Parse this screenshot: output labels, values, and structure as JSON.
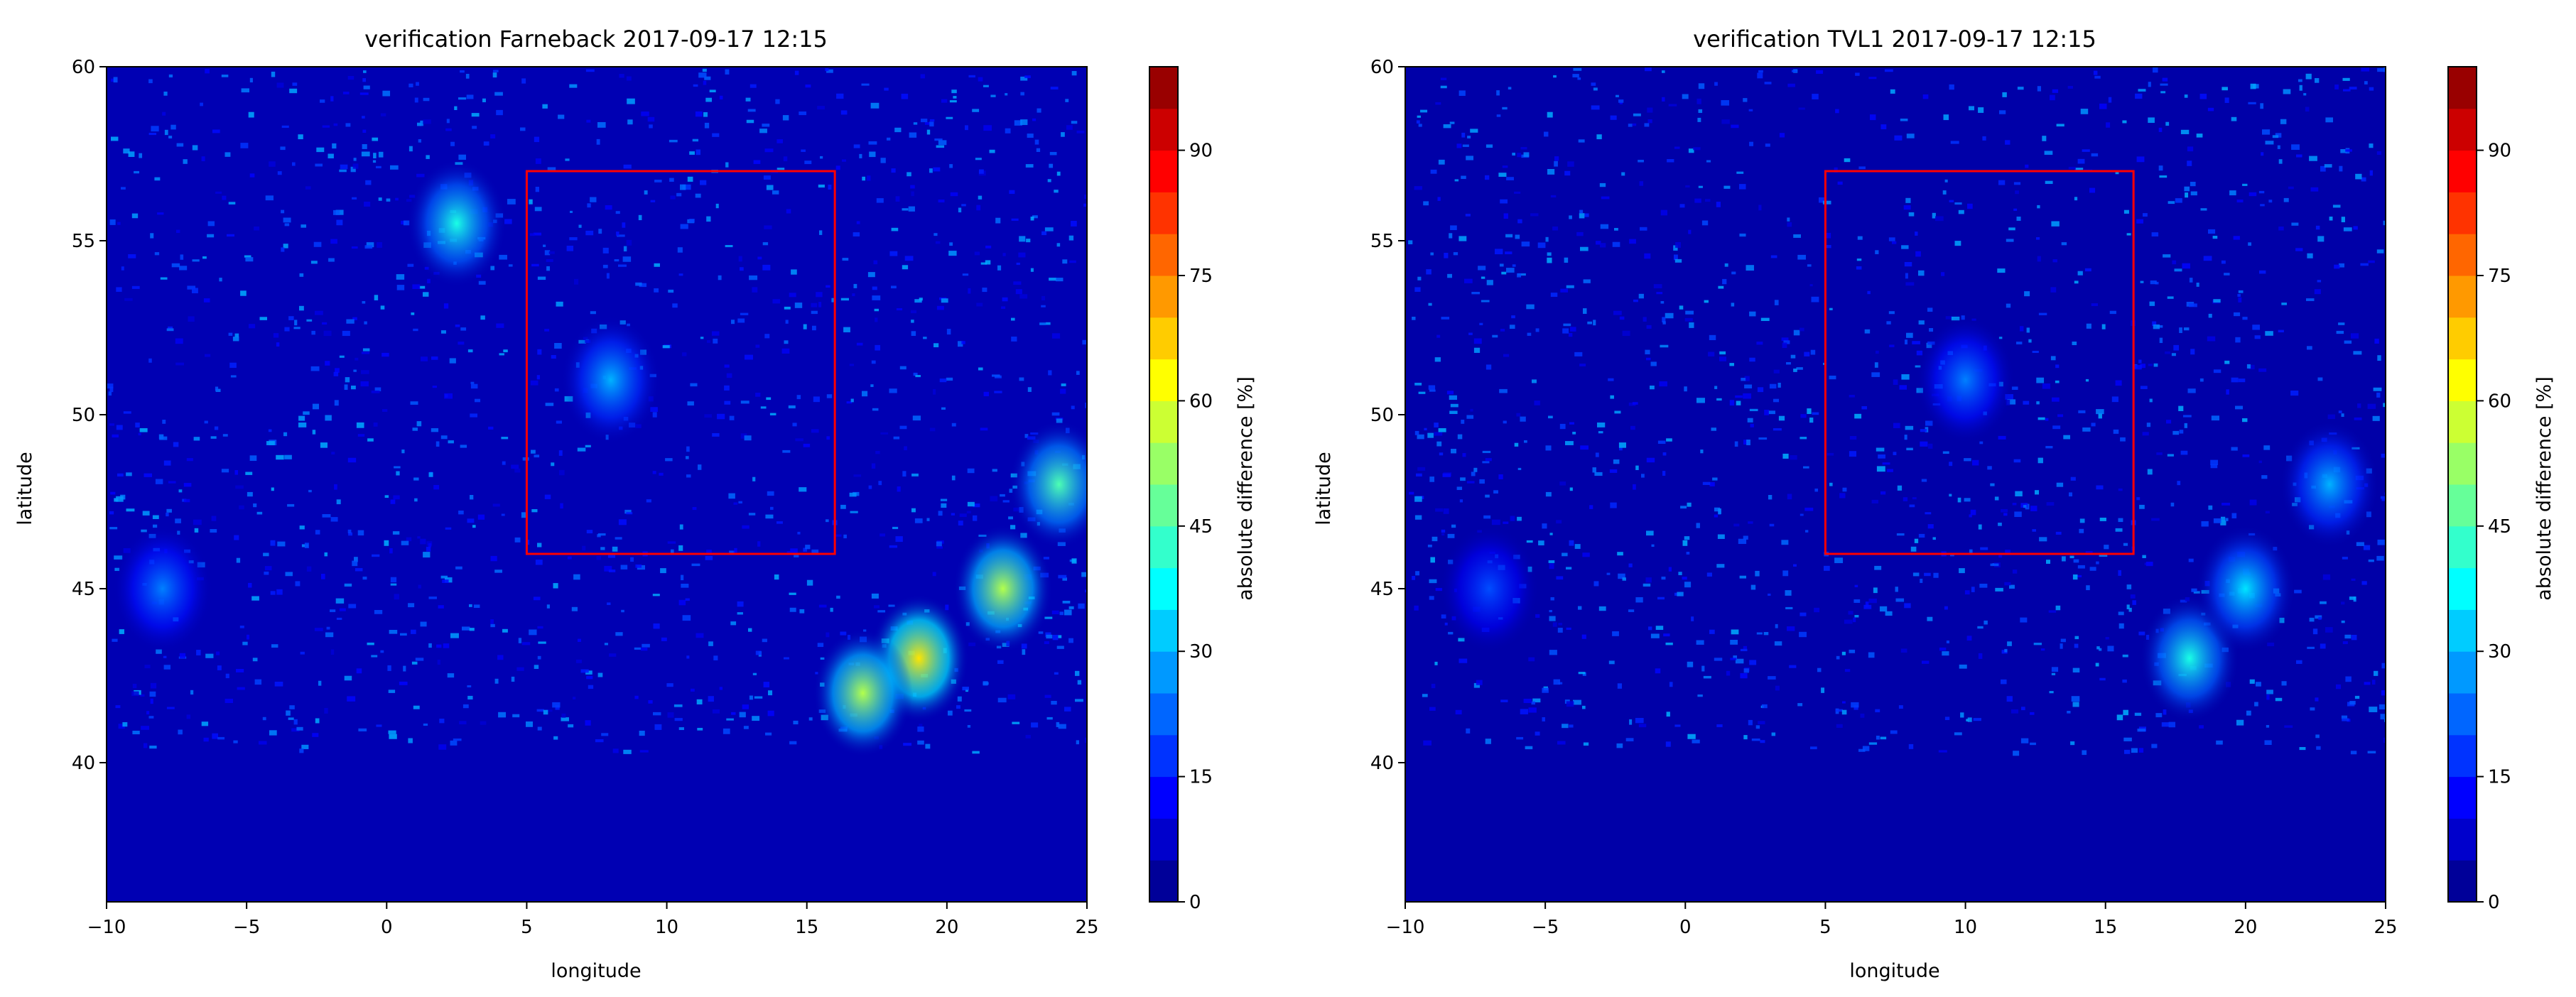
{
  "chart_data": [
    {
      "type": "heatmap",
      "title": "verification Farneback 2017-09-17 12:15",
      "xlabel": "longitude",
      "ylabel": "latitude",
      "xlim": [
        -10,
        25
      ],
      "ylim": [
        36,
        60
      ],
      "xticks": [
        -10,
        -5,
        0,
        5,
        10,
        15,
        20,
        25
      ],
      "xtick_labels": [
        "−10",
        "−5",
        "0",
        "5",
        "10",
        "15",
        "20",
        "25"
      ],
      "yticks": [
        40,
        45,
        50,
        55,
        60
      ],
      "ytick_labels": [
        "40",
        "45",
        "50",
        "55",
        "60"
      ],
      "colorbar": {
        "label": "absolute difference [%]",
        "range": [
          0,
          100
        ],
        "levels": 20,
        "ticks": [
          0,
          15,
          30,
          45,
          60,
          75,
          90
        ],
        "tick_labels": [
          "0",
          "15",
          "30",
          "45",
          "60",
          "75",
          "90"
        ],
        "colormap": "jet"
      },
      "region_box": {
        "lon": [
          5,
          16
        ],
        "lat": [
          46,
          57
        ],
        "color": "#ff0000"
      },
      "hotspots": [
        {
          "lon": 19,
          "lat": 43,
          "value": 65
        },
        {
          "lon": 22,
          "lat": 45,
          "value": 55
        },
        {
          "lon": 24,
          "lat": 48,
          "value": 45
        },
        {
          "lon": 17,
          "lat": 42,
          "value": 55
        },
        {
          "lon": 2.5,
          "lat": 55.5,
          "value": 40
        },
        {
          "lon": 8,
          "lat": 51,
          "value": 30
        },
        {
          "lon": -8,
          "lat": 45,
          "value": 25
        }
      ],
      "background_value": 5,
      "grid": false
    },
    {
      "type": "heatmap",
      "title": "verification TVL1 2017-09-17 12:15",
      "xlabel": "longitude",
      "ylabel": "latitude",
      "xlim": [
        -10,
        25
      ],
      "ylim": [
        36,
        60
      ],
      "xticks": [
        -10,
        -5,
        0,
        5,
        10,
        15,
        20,
        25
      ],
      "xtick_labels": [
        "−10",
        "−5",
        "0",
        "5",
        "10",
        "15",
        "20",
        "25"
      ],
      "yticks": [
        40,
        45,
        50,
        55,
        60
      ],
      "ytick_labels": [
        "40",
        "45",
        "50",
        "55",
        "60"
      ],
      "colorbar": {
        "label": "absolute difference [%]",
        "range": [
          0,
          100
        ],
        "levels": 20,
        "ticks": [
          0,
          15,
          30,
          45,
          60,
          75,
          90
        ],
        "tick_labels": [
          "0",
          "15",
          "30",
          "45",
          "60",
          "75",
          "90"
        ],
        "colormap": "jet"
      },
      "region_box": {
        "lon": [
          5,
          16
        ],
        "lat": [
          46,
          57
        ],
        "color": "#ff0000"
      },
      "hotspots": [
        {
          "lon": 18,
          "lat": 43,
          "value": 40
        },
        {
          "lon": 20,
          "lat": 45,
          "value": 35
        },
        {
          "lon": 23,
          "lat": 48,
          "value": 30
        },
        {
          "lon": 10,
          "lat": 51,
          "value": 25
        },
        {
          "lon": -7,
          "lat": 45,
          "value": 20
        }
      ],
      "background_value": 4,
      "grid": false
    }
  ]
}
